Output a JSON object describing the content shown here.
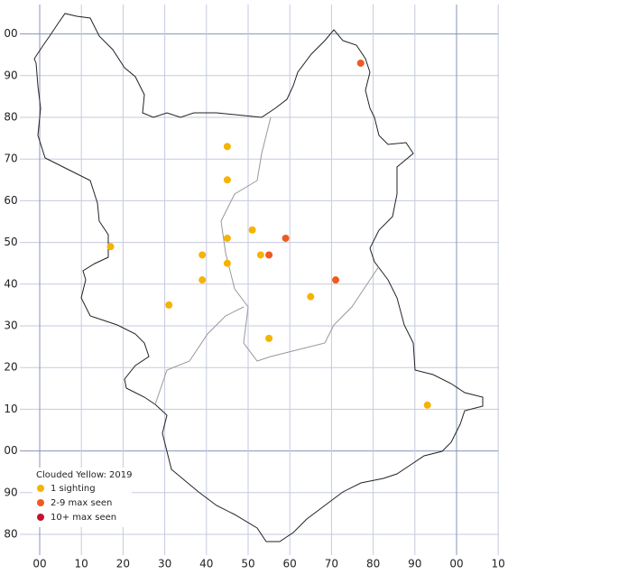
{
  "map": {
    "xlim": [
      0,
      110
    ],
    "ylim": [
      80,
      200
    ],
    "xticks": [
      {
        "value": 0,
        "label": "00"
      },
      10,
      20,
      30,
      40,
      50,
      60,
      70,
      80,
      90,
      {
        "value": 100,
        "label": "00"
      },
      {
        "value": 110,
        "label": "10"
      }
    ],
    "yticks": [
      80,
      90,
      {
        "value": 100,
        "label": "00"
      },
      {
        "value": 110,
        "label": "10"
      },
      {
        "value": 120,
        "label": "20"
      },
      {
        "value": 130,
        "label": "30"
      },
      {
        "value": 140,
        "label": "40"
      },
      {
        "value": 150,
        "label": "50"
      },
      {
        "value": 160,
        "label": "60"
      },
      {
        "value": 170,
        "label": "70"
      },
      {
        "value": 180,
        "label": "80"
      },
      {
        "value": 190,
        "label": "90"
      },
      {
        "value": 200,
        "label": "00"
      }
    ],
    "legend_title": "Clouded Yellow:  2019",
    "series": [
      {
        "name": "1 sighting",
        "color": "#f5b400",
        "x": [
          45,
          45,
          51,
          45,
          17,
          39,
          53,
          45,
          39,
          65,
          31,
          55,
          93
        ],
        "y": [
          173,
          165,
          153,
          151,
          149,
          147,
          147,
          145,
          141,
          137,
          135,
          127,
          111
        ]
      },
      {
        "name": "2-9 max seen",
        "color": "#f05a22",
        "x": [
          77,
          59,
          55,
          71
        ],
        "y": [
          193,
          151,
          147,
          141
        ]
      },
      {
        "name": "10+ max seen",
        "color": "#c4122f",
        "x": [],
        "y": []
      }
    ]
  }
}
